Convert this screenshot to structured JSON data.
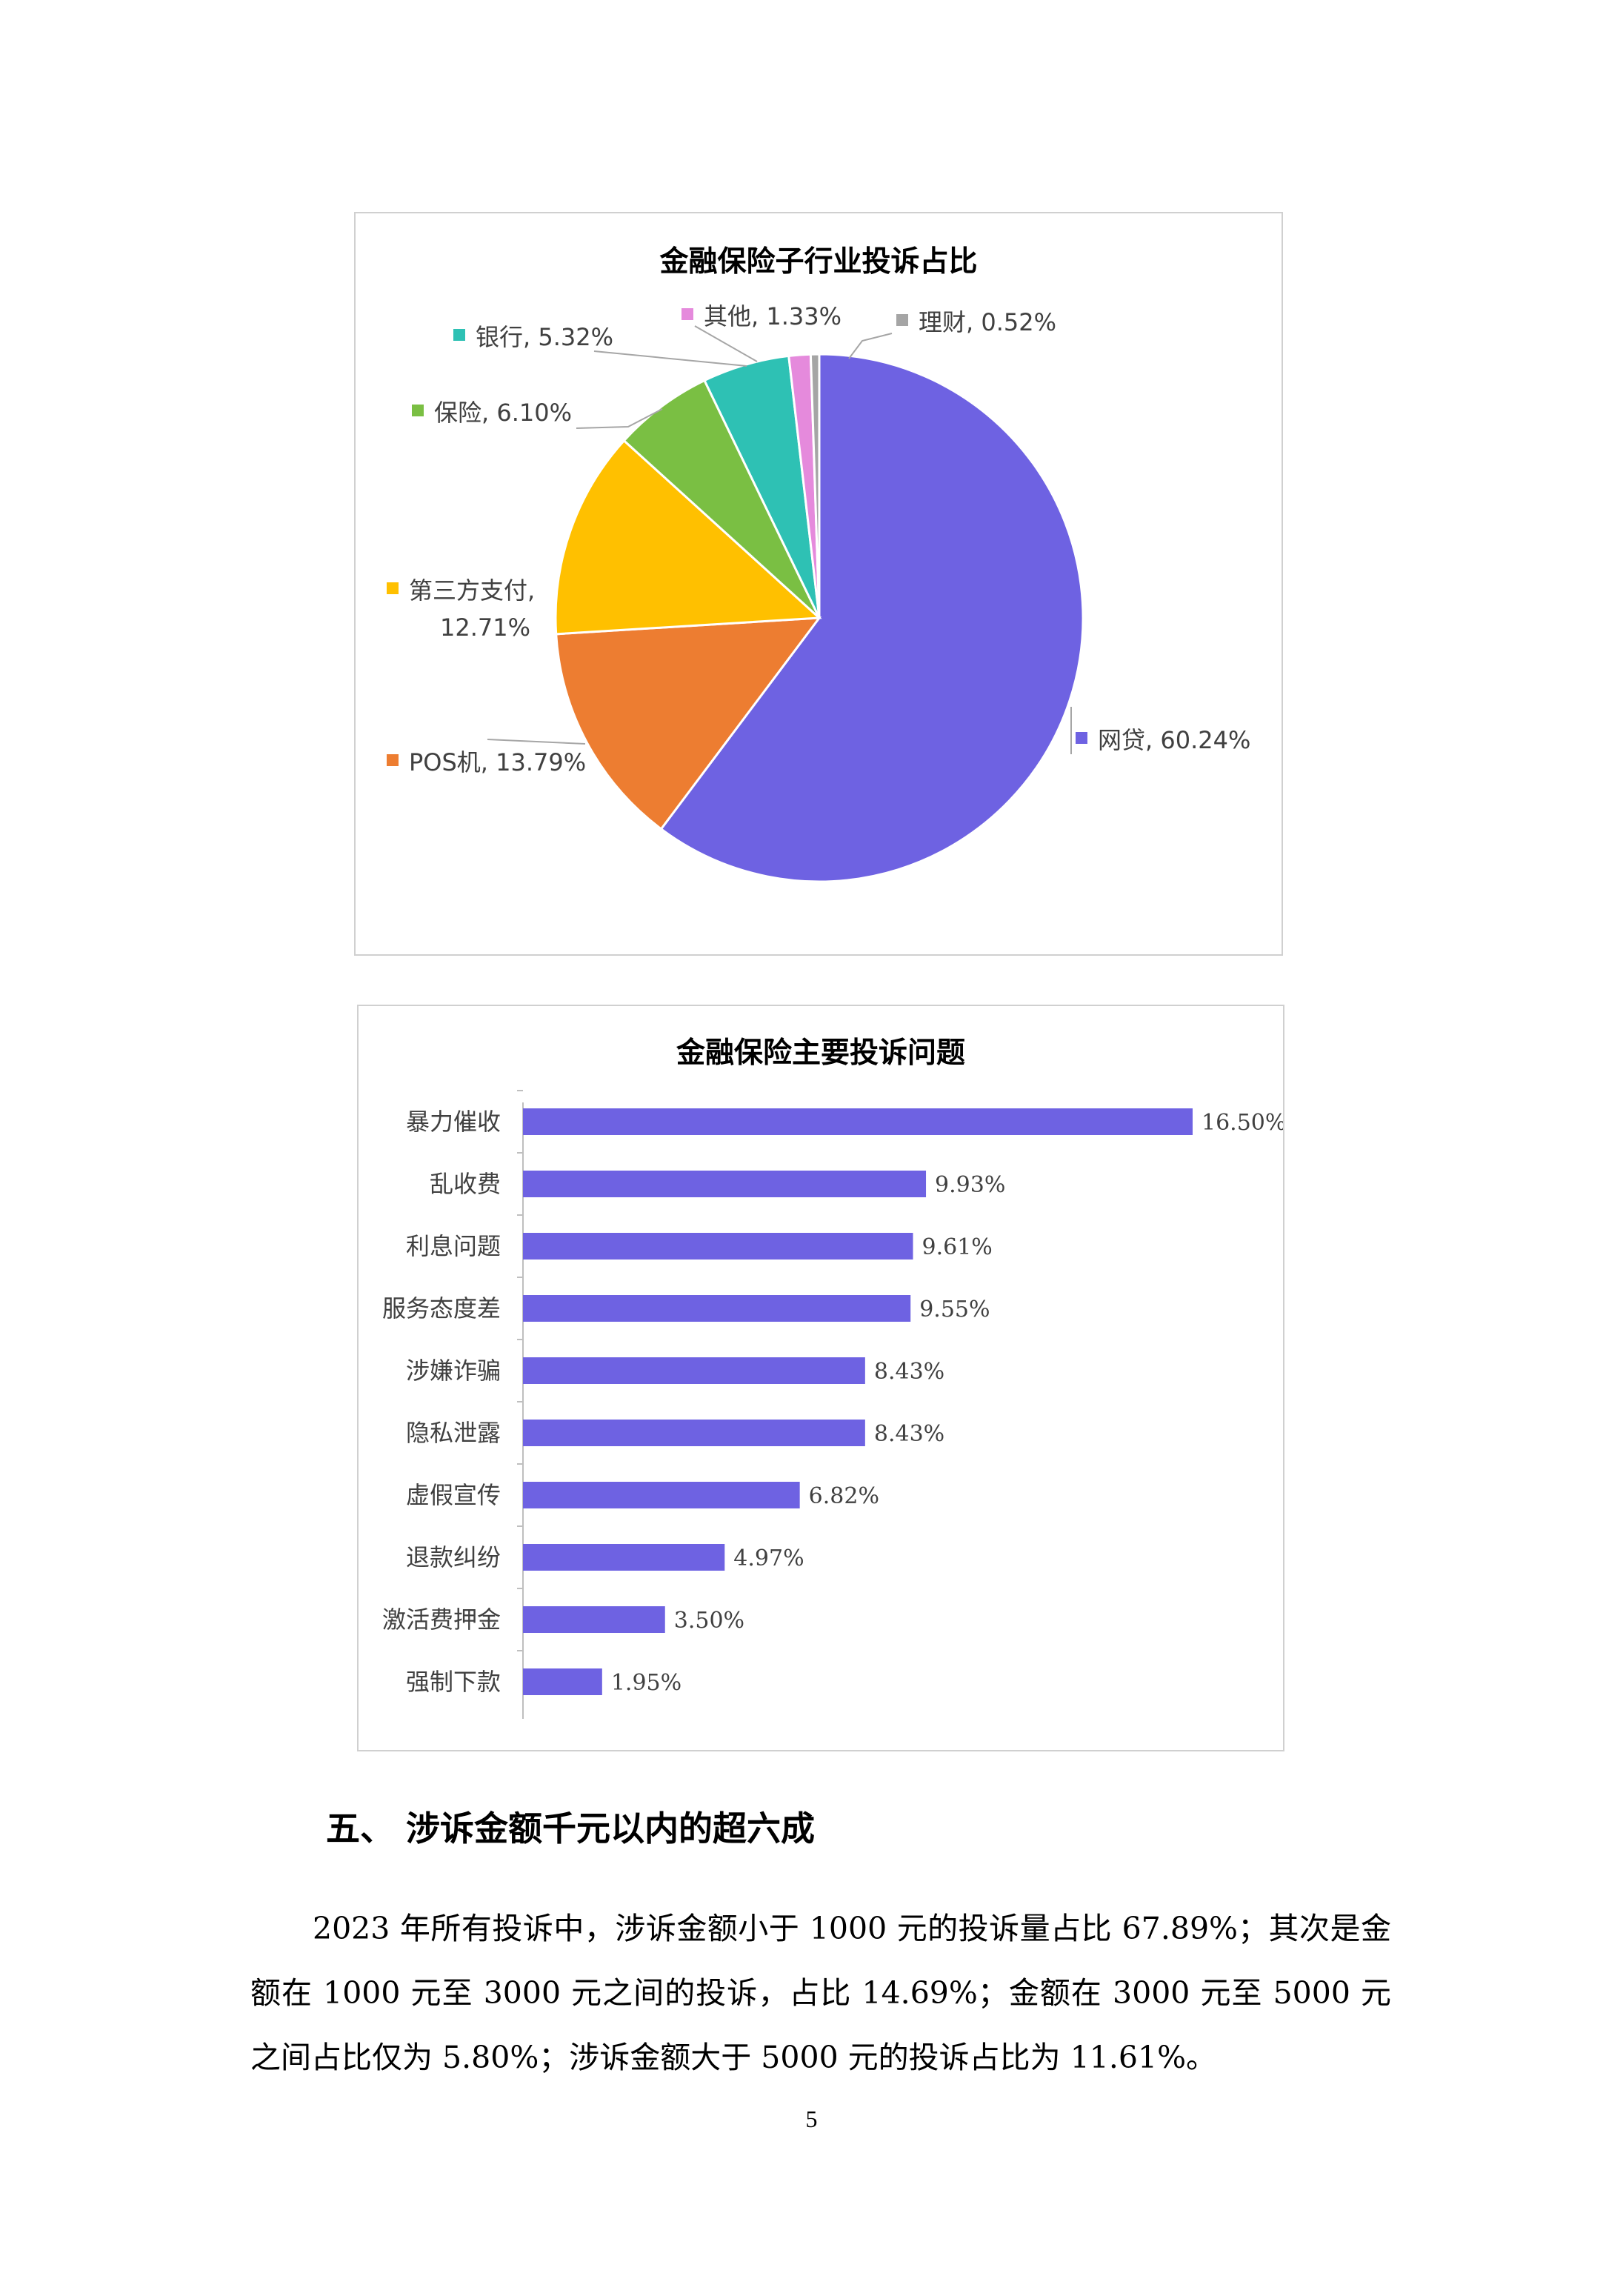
{
  "chart_data": [
    {
      "type": "pie",
      "title": "金融保险子行业投诉占比",
      "slices": [
        {
          "label": "网贷",
          "value": 60.24,
          "display": "网贷, 60.24%",
          "color": "#6E62E2"
        },
        {
          "label": "POS机",
          "value": 13.79,
          "display": "POS机, 13.79%",
          "color": "#ED7D31"
        },
        {
          "label": "第三方支付",
          "value": 12.71,
          "display": "第三方支付,",
          "display2": "12.71%",
          "color": "#FFC000"
        },
        {
          "label": "保险",
          "value": 6.1,
          "display": "保险, 6.10%",
          "color": "#7ABF43"
        },
        {
          "label": "银行",
          "value": 5.32,
          "display": "银行, 5.32%",
          "color": "#2EC1B4"
        },
        {
          "label": "其他",
          "value": 1.33,
          "display": "其他, 1.33%",
          "color": "#E58ADC"
        },
        {
          "label": "理财",
          "value": 0.52,
          "display": "理财, 0.52%",
          "color": "#A5A5A5"
        }
      ],
      "legend": "data-labels"
    },
    {
      "type": "bar",
      "orientation": "horizontal",
      "title": "金融保险主要投诉问题",
      "categories": [
        "暴力催收",
        "乱收费",
        "利息问题",
        "服务态度差",
        "涉嫌诈骗",
        "隐私泄露",
        "虚假宣传",
        "退款纠纷",
        "激活费押金",
        "强制下款"
      ],
      "values": [
        16.5,
        9.93,
        9.61,
        9.55,
        8.43,
        8.43,
        6.82,
        4.97,
        3.5,
        1.95
      ],
      "value_labels": [
        "16.50%",
        "9.93%",
        "9.61%",
        "9.55%",
        "8.43%",
        "8.43%",
        "6.82%",
        "4.97%",
        "3.50%",
        "1.95%"
      ],
      "unit": "%",
      "xlim": [
        0,
        16.5
      ],
      "color": "#6E62E2",
      "grid": false
    }
  ],
  "section": {
    "heading": "五、  涉诉金额千元以内的超六成"
  },
  "paragraph": "2023 年所有投诉中，涉诉金额小于 1000 元的投诉量占比 67.89%；其次是金额在 1000 元至 3000 元之间的投诉，占比 14.69%；金额在 3000 元至 5000 元之间占比仅为 5.80%；涉诉金额大于 5000 元的投诉占比为 11.61%。",
  "page_number": "5"
}
